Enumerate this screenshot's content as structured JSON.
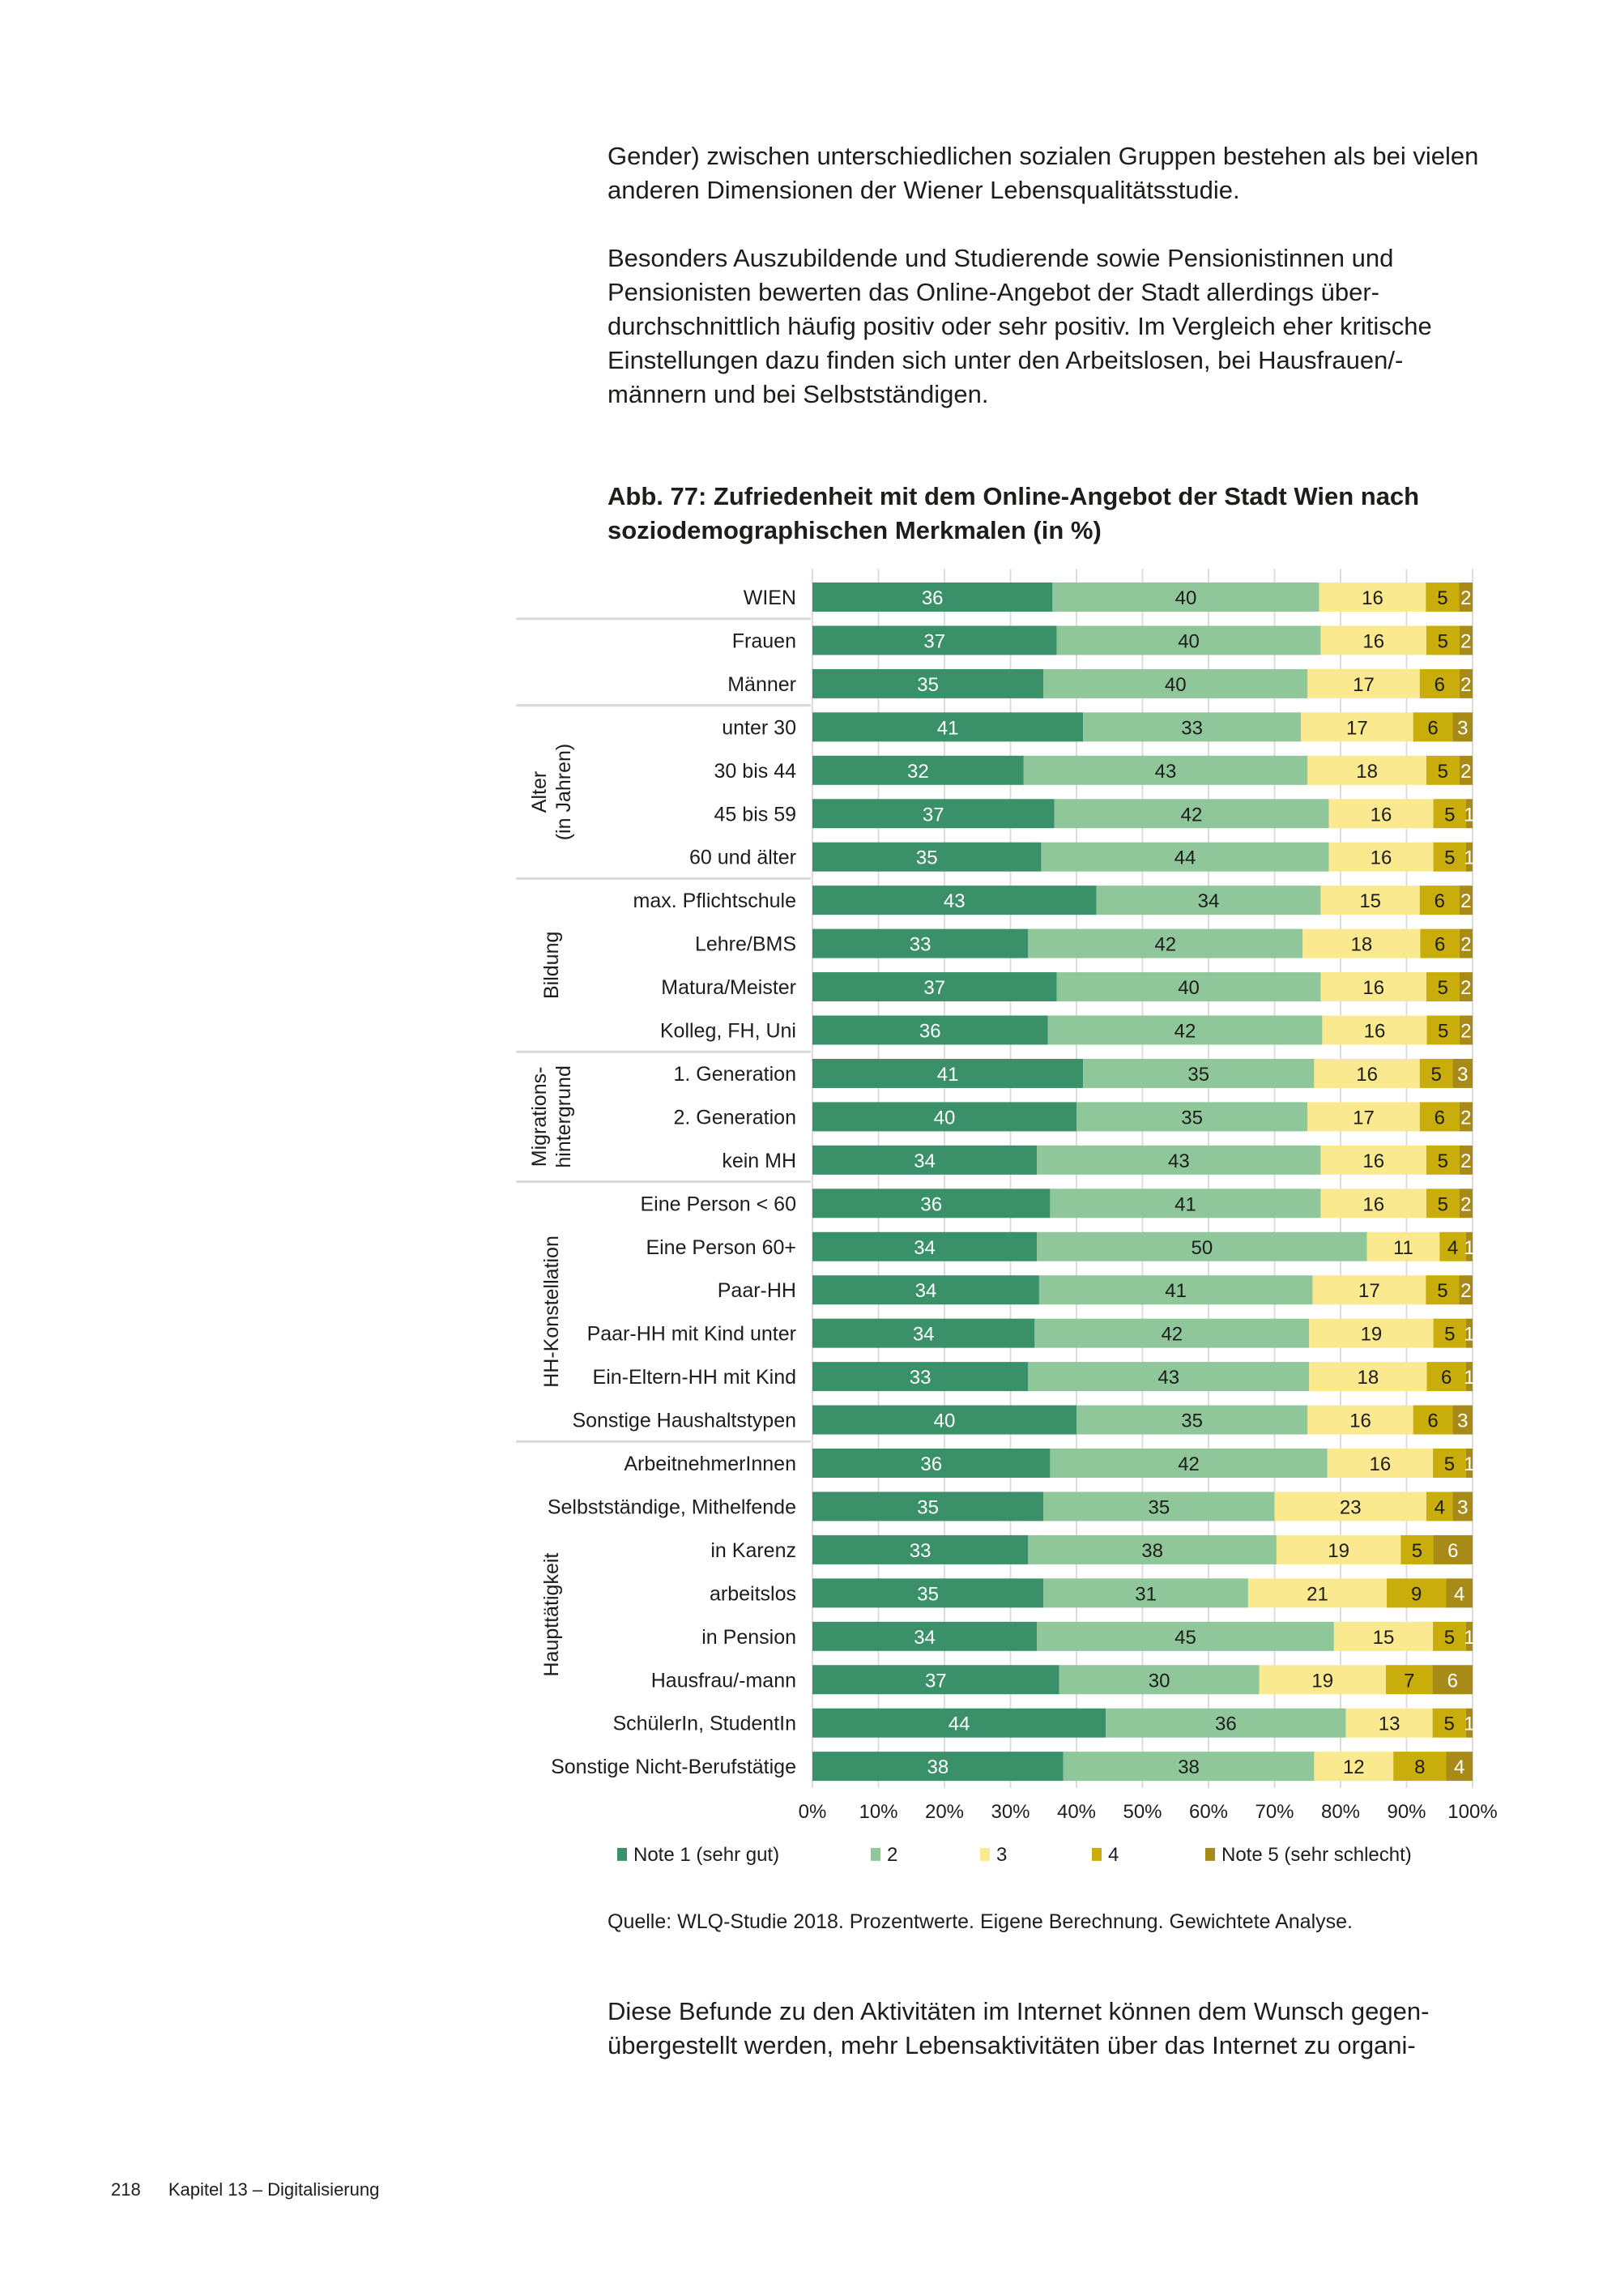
{
  "page": {
    "paragraphs": [
      "Gender) zwischen unterschiedlichen sozialen Gruppen bestehen als bei vielen anderen Dimensionen der Wiener Lebensqualitätsstudie.",
      "Besonders Auszubildende und Studierende sowie Pensionistinnen und Pensionisten bewerten das Online-Angebot der Stadt allerdings über-durchschnittlich häufig positiv oder sehr positiv. Im Vergleich eher kritische Einstellungen dazu finden sich unter den Arbeitslosen, bei Hausfrauen/-männern und bei Selbstständigen.",
      "Diese Befunde zu den Aktivitäten im Internet können dem Wunsch gegen-übergestellt werden, mehr Lebensaktivitäten über das Internet zu organi-"
    ],
    "source": "Quelle: WLQ-Studie 2018. Prozentwerte. Eigene Berechnung. Gewichtete Analyse.",
    "footer": {
      "page_number": "218",
      "chapter": "Kapitel 13 – Digitalisierung"
    }
  },
  "chart_data": {
    "type": "bar",
    "orientation": "horizontal",
    "stacked": true,
    "title": "Abb. 77: Zufriedenheit mit dem Online-Angebot der Stadt Wien nach soziodemographischen Merkmalen (in %)",
    "xlabel": "",
    "ylabel": "",
    "xlim": [
      0,
      100
    ],
    "x_ticks": [
      "0%",
      "10%",
      "20%",
      "30%",
      "40%",
      "50%",
      "60%",
      "70%",
      "80%",
      "90%",
      "100%"
    ],
    "grid": true,
    "legend_position": "bottom",
    "colors": [
      "#3a9068",
      "#8fc79a",
      "#fbe98f",
      "#c9ad0b",
      "#a88a16"
    ],
    "series_names": [
      "Note 1 (sehr gut)",
      "2",
      "3",
      "4",
      "Note 5 (sehr schlecht)"
    ],
    "groups": [
      {
        "label": "",
        "start": 0,
        "end": 0
      },
      {
        "label": "",
        "start": 1,
        "end": 2
      },
      {
        "label": "Alter\n(in Jahren)",
        "start": 3,
        "end": 6
      },
      {
        "label": "Bildung",
        "start": 7,
        "end": 10
      },
      {
        "label": "Migrations-\nhintergrund",
        "start": 11,
        "end": 13
      },
      {
        "label": "HH-Konstellation",
        "start": 14,
        "end": 19
      },
      {
        "label": "Haupttätigkeit",
        "start": 20,
        "end": 27
      }
    ],
    "categories": [
      "WIEN",
      "Frauen",
      "Männer",
      "unter 30",
      "30 bis 44",
      "45 bis 59",
      "60 und älter",
      "max. Pflichtschule",
      "Lehre/BMS",
      "Matura/Meister",
      "Kolleg, FH, Uni",
      "1. Generation",
      "2. Generation",
      "kein MH",
      "Eine Person < 60",
      "Eine Person 60+",
      "Paar-HH",
      "Paar-HH mit Kind unter",
      "Ein-Eltern-HH mit Kind",
      "Sonstige Haushaltstypen",
      "ArbeitnehmerInnen",
      "Selbstständige, Mithelfende",
      "in Karenz",
      "arbeitslos",
      "in Pension",
      "Hausfrau/-mann",
      "SchülerIn, StudentIn",
      "Sonstige Nicht-Berufstätige"
    ],
    "series": [
      {
        "name": "Note 1 (sehr gut)",
        "values": [
          36,
          37,
          35,
          41,
          32,
          37,
          35,
          43,
          33,
          37,
          36,
          41,
          40,
          34,
          36,
          34,
          34,
          34,
          33,
          40,
          36,
          35,
          33,
          35,
          34,
          37,
          44,
          38
        ]
      },
      {
        "name": "2",
        "values": [
          40,
          40,
          40,
          33,
          43,
          42,
          44,
          34,
          42,
          40,
          42,
          35,
          35,
          43,
          41,
          50,
          41,
          42,
          43,
          35,
          42,
          35,
          38,
          31,
          45,
          30,
          36,
          38
        ]
      },
      {
        "name": "3",
        "values": [
          16,
          16,
          17,
          17,
          18,
          16,
          16,
          15,
          18,
          16,
          16,
          16,
          17,
          16,
          16,
          11,
          17,
          19,
          18,
          16,
          16,
          23,
          19,
          21,
          15,
          19,
          13,
          12
        ]
      },
      {
        "name": "4",
        "values": [
          5,
          5,
          6,
          6,
          5,
          5,
          5,
          6,
          6,
          5,
          5,
          5,
          6,
          5,
          5,
          4,
          5,
          5,
          6,
          6,
          5,
          4,
          5,
          9,
          5,
          7,
          5,
          8
        ]
      },
      {
        "name": "Note 5 (sehr schlecht)",
        "values": [
          2,
          2,
          2,
          3,
          2,
          1,
          1,
          2,
          2,
          2,
          2,
          3,
          2,
          2,
          2,
          1,
          2,
          1,
          1,
          3,
          1,
          3,
          6,
          4,
          1,
          6,
          1,
          4
        ]
      }
    ]
  }
}
